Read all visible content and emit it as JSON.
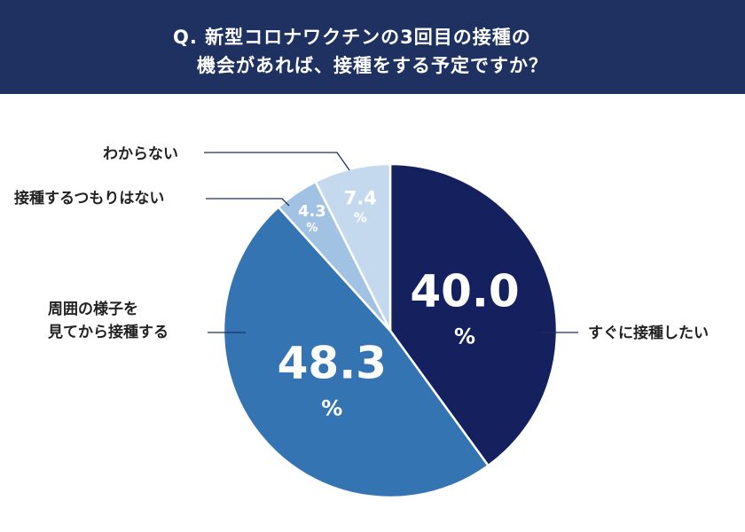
{
  "header": {
    "line1": "Q. 新型コロナワクチンの3回目の接種の",
    "line2": "機会があれば、接種をする予定ですか？"
  },
  "colors": {
    "header_bg": "#1e3160",
    "slice_1": "#14215e",
    "slice_2": "#3474b3",
    "slice_3": "#a2c2e3",
    "slice_4": "#c5d9ee",
    "leader": "#1e3160"
  },
  "chart_data": {
    "type": "pie",
    "title": "Q. 新型コロナワクチンの3回目の接種の機会があれば、接種をする予定ですか？",
    "unit": "%",
    "slices": [
      {
        "label": "すぐに接種したい",
        "value": 40.0,
        "value_text": "40.0"
      },
      {
        "label": "周囲の様子を見てから接種する",
        "label_lines": [
          "周囲の様子を",
          "見てから接種する"
        ],
        "value": 48.3,
        "value_text": "48.3"
      },
      {
        "label": "接種するつもりはない",
        "value": 4.3,
        "value_text": "4.3"
      },
      {
        "label": "わからない",
        "value": 7.4,
        "value_text": "7.4"
      }
    ],
    "start_angle": "12 o'clock",
    "direction": "clockwise"
  }
}
